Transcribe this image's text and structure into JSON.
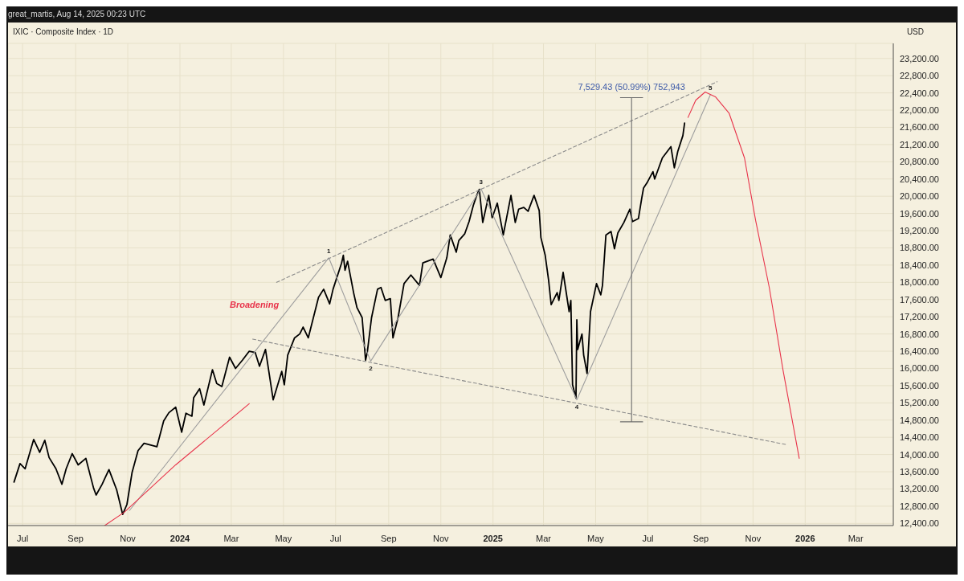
{
  "chart_data": {
    "type": "line",
    "title": "IXIC · Composite Index · 1D",
    "ylabel": "USD",
    "xlim": [
      "2023-06-14",
      "2026-04-14"
    ],
    "ylim": [
      12350,
      23550
    ],
    "xticks": [
      {
        "value": "2023-07-01",
        "label": "Jul"
      },
      {
        "value": "2023-09-01",
        "label": "Sep"
      },
      {
        "value": "2023-11-01",
        "label": "Nov"
      },
      {
        "value": "2024-01-01",
        "label": "2024"
      },
      {
        "value": "2024-03-01",
        "label": "Mar"
      },
      {
        "value": "2024-05-01",
        "label": "May"
      },
      {
        "value": "2024-07-01",
        "label": "Jul"
      },
      {
        "value": "2024-09-01",
        "label": "Sep"
      },
      {
        "value": "2024-11-01",
        "label": "Nov"
      },
      {
        "value": "2025-01-01",
        "label": "2025"
      },
      {
        "value": "2025-03-01",
        "label": "Mar"
      },
      {
        "value": "2025-05-01",
        "label": "May"
      },
      {
        "value": "2025-07-01",
        "label": "Jul"
      },
      {
        "value": "2025-09-01",
        "label": "Sep"
      },
      {
        "value": "2025-11-01",
        "label": "Nov"
      },
      {
        "value": "2026-01-01",
        "label": "2026"
      },
      {
        "value": "2026-03-01",
        "label": "Mar"
      }
    ],
    "yticks": [
      {
        "value": 12400,
        "label": "12,400.00"
      },
      {
        "value": 12800,
        "label": "12,800.00"
      },
      {
        "value": 13200,
        "label": "13,200.00"
      },
      {
        "value": 13600,
        "label": "13,600.00"
      },
      {
        "value": 14000,
        "label": "14,000.00"
      },
      {
        "value": 14400,
        "label": "14,400.00"
      },
      {
        "value": 14800,
        "label": "14,800.00"
      },
      {
        "value": 15200,
        "label": "15,200.00"
      },
      {
        "value": 15600,
        "label": "15,600.00"
      },
      {
        "value": 16000,
        "label": "16,000.00"
      },
      {
        "value": 16400,
        "label": "16,400.00"
      },
      {
        "value": 16800,
        "label": "16,800.00"
      },
      {
        "value": 17200,
        "label": "17,200.00"
      },
      {
        "value": 17600,
        "label": "17,600.00"
      },
      {
        "value": 18000,
        "label": "18,000.00"
      },
      {
        "value": 18400,
        "label": "18,400.00"
      },
      {
        "value": 18800,
        "label": "18,800.00"
      },
      {
        "value": 19200,
        "label": "19,200.00"
      },
      {
        "value": 19600,
        "label": "19,600.00"
      },
      {
        "value": 20000,
        "label": "20,000.00"
      },
      {
        "value": 20400,
        "label": "20,400.00"
      },
      {
        "value": 20800,
        "label": "20,800.00"
      },
      {
        "value": 21200,
        "label": "21,200.00"
      },
      {
        "value": 21600,
        "label": "21,600.00"
      },
      {
        "value": 22000,
        "label": "22,000.00"
      },
      {
        "value": 22400,
        "label": "22,400.00"
      },
      {
        "value": 22800,
        "label": "22,800.00"
      },
      {
        "value": 23200,
        "label": "23,200.00"
      }
    ],
    "grid": true,
    "marker": "none",
    "series": [
      {
        "color": "#000000",
        "line_style": "solid",
        "x": [
          "2023-06-21",
          "2023-06-28",
          "2023-07-04",
          "2023-07-14",
          "2023-07-21",
          "2023-07-27",
          "2023-08-01",
          "2023-08-09",
          "2023-08-16",
          "2023-08-21",
          "2023-08-28",
          "2023-09-04",
          "2023-09-13",
          "2023-09-22",
          "2023-09-25",
          "2023-10-02",
          "2023-10-06",
          "2023-10-10",
          "2023-10-19",
          "2023-10-26",
          "2023-10-31",
          "2023-11-06",
          "2023-11-13",
          "2023-11-20",
          "2023-12-05",
          "2023-12-13",
          "2023-12-19",
          "2023-12-27",
          "2024-01-03",
          "2024-01-08",
          "2024-01-15",
          "2024-01-17",
          "2024-01-24",
          "2024-01-29",
          "2024-02-08",
          "2024-02-13",
          "2024-02-19",
          "2024-02-28",
          "2024-03-06",
          "2024-03-14",
          "2024-03-22",
          "2024-03-29",
          "2024-04-03",
          "2024-04-10",
          "2024-04-19",
          "2024-04-29",
          "2024-05-02",
          "2024-05-06",
          "2024-05-14",
          "2024-05-20",
          "2024-05-24",
          "2024-05-30",
          "2024-06-11",
          "2024-06-17",
          "2024-06-24",
          "2024-06-28",
          "2024-07-08",
          "2024-07-10",
          "2024-07-12",
          "2024-07-15",
          "2024-07-22",
          "2024-07-26",
          "2024-08-01",
          "2024-08-05",
          "2024-08-07",
          "2024-08-12",
          "2024-08-19",
          "2024-08-23",
          "2024-08-28",
          "2024-09-03",
          "2024-09-06",
          "2024-09-12",
          "2024-09-19",
          "2024-09-27",
          "2024-10-07",
          "2024-10-11",
          "2024-10-23",
          "2024-11-01",
          "2024-11-08",
          "2024-11-12",
          "2024-11-19",
          "2024-11-22",
          "2024-11-29",
          "2024-12-04",
          "2024-12-09",
          "2024-12-13",
          "2024-12-16",
          "2024-12-20",
          "2024-12-27",
          "2024-12-31",
          "2025-01-06",
          "2025-01-13",
          "2025-01-22",
          "2025-01-27",
          "2025-01-31",
          "2025-02-06",
          "2025-02-11",
          "2025-02-18",
          "2025-02-24",
          "2025-02-26",
          "2025-03-03",
          "2025-03-07",
          "2025-03-10",
          "2025-03-17",
          "2025-03-19",
          "2025-03-24",
          "2025-03-31",
          "2025-04-02",
          "2025-04-04",
          "2025-04-08",
          "2025-04-09",
          "2025-04-10",
          "2025-04-15",
          "2025-04-17",
          "2025-04-21",
          "2025-04-25",
          "2025-05-02",
          "2025-05-07",
          "2025-05-09",
          "2025-05-13",
          "2025-05-19",
          "2025-05-23",
          "2025-05-27",
          "2025-06-03",
          "2025-06-10",
          "2025-06-13",
          "2025-06-20",
          "2025-06-24",
          "2025-06-26",
          "2025-06-30",
          "2025-07-07",
          "2025-07-09",
          "2025-07-18",
          "2025-07-28",
          "2025-08-01",
          "2025-08-05",
          "2025-08-11",
          "2025-08-13"
        ],
        "values": [
          13360,
          13790,
          13670,
          14350,
          14050,
          14330,
          13930,
          13670,
          13310,
          13670,
          14020,
          13760,
          13910,
          13220,
          13060,
          13310,
          13480,
          13650,
          13180,
          12610,
          12840,
          13580,
          14090,
          14260,
          14180,
          14780,
          14970,
          15100,
          14520,
          14960,
          14890,
          15320,
          15530,
          15150,
          15970,
          15650,
          15580,
          16260,
          16000,
          16190,
          16400,
          16370,
          16050,
          16440,
          15270,
          15930,
          15620,
          16310,
          16710,
          16800,
          16960,
          16710,
          17650,
          17840,
          17500,
          17840,
          18450,
          18630,
          18280,
          18490,
          17760,
          17410,
          17180,
          16190,
          16370,
          17180,
          17840,
          17880,
          17580,
          17620,
          16710,
          17180,
          17970,
          18170,
          17930,
          18450,
          18540,
          18110,
          18570,
          19100,
          18700,
          18970,
          19130,
          19410,
          19790,
          20020,
          20160,
          19390,
          20020,
          19500,
          19840,
          19100,
          20020,
          19390,
          19700,
          19740,
          19650,
          20020,
          19670,
          19040,
          18630,
          18050,
          17480,
          17760,
          17580,
          18230,
          17320,
          17580,
          15620,
          15310,
          17130,
          16440,
          16800,
          16310,
          15880,
          17320,
          17970,
          17710,
          17930,
          19100,
          19180,
          18780,
          19150,
          19390,
          19700,
          19410,
          19480,
          19970,
          20190,
          20310,
          20570,
          20400,
          20890,
          21150,
          20660,
          21040,
          21410,
          21700
        ]
      },
      {
        "color": "#9e9e9e",
        "line_style": "solid",
        "x": [
          "2023-11-03",
          "2024-06-23",
          "2024-08-11",
          "2024-12-18",
          "2025-04-09",
          "2025-09-12"
        ],
        "values": [
          12700,
          18570,
          16170,
          20170,
          15270,
          22350
        ]
      },
      {
        "color": "#8a8a8a",
        "line_style": "dashed",
        "x": [
          "2024-04-23",
          "2025-09-20"
        ],
        "values": [
          18000,
          22660
        ]
      },
      {
        "color": "#8a8a8a",
        "line_style": "dashed",
        "x": [
          "2024-03-26",
          "2025-12-10"
        ],
        "values": [
          16680,
          14230
        ]
      },
      {
        "color": "#e8334a",
        "line_style": "solid",
        "x": [
          "2023-10-05",
          "2023-10-28",
          "2023-12-27",
          "2024-03-22"
        ],
        "values": [
          12350,
          12660,
          13760,
          15180
        ]
      },
      {
        "color": "#e8334a",
        "line_style": "solid",
        "x": [
          "2025-08-17",
          "2025-08-26",
          "2025-09-06",
          "2025-09-18",
          "2025-10-04",
          "2025-10-22",
          "2025-11-04",
          "2025-11-20",
          "2025-12-06",
          "2025-12-25"
        ],
        "values": [
          21830,
          22230,
          22420,
          22310,
          21930,
          20890,
          19440,
          17880,
          15970,
          13910
        ]
      },
      {
        "color": "#6d6d6d",
        "line_style": "solid",
        "x": [
          "2025-05-30",
          "2025-06-25",
          "2025-06-12",
          "2025-06-12",
          "2025-05-30",
          "2025-06-25"
        ],
        "values": [
          22290,
          22290,
          22290,
          14760,
          14760,
          14760
        ]
      }
    ],
    "annotations": [
      "great_martis, Aug 14, 2025 00:23 UTC",
      "Broadening",
      {
        "text": "7,529.43 (50.99%) 752,943",
        "x": "2025-06-12",
        "y": 22290
      },
      {
        "text": "1",
        "x": "2024-06-23",
        "y": 18570
      },
      {
        "text": "2",
        "x": "2024-08-11",
        "y": 16170
      },
      {
        "text": "3",
        "x": "2024-12-18",
        "y": 20170
      },
      {
        "text": "4",
        "x": "2025-04-09",
        "y": 15270
      },
      {
        "text": "5",
        "x": "2025-09-12",
        "y": 22350
      }
    ]
  }
}
